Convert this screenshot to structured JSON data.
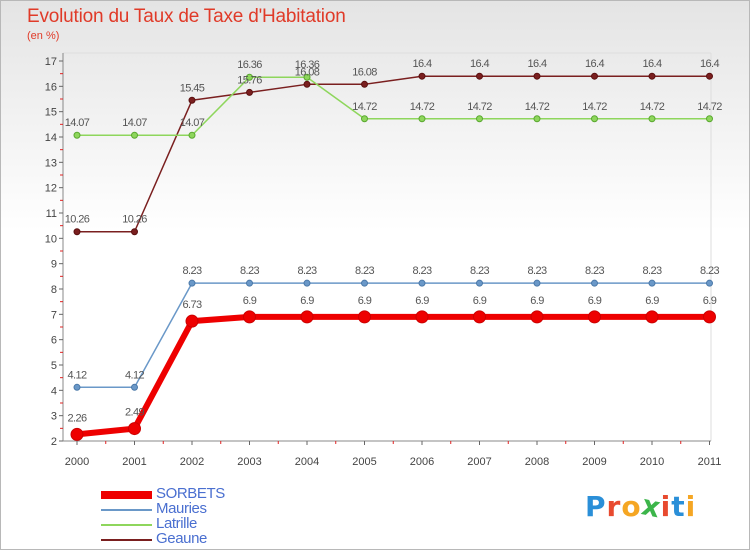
{
  "title": "Evolution du Taux de Taxe d'Habitation",
  "subtitle": "(en %)",
  "logo": {
    "letters": [
      "P",
      "r",
      "o",
      "x",
      "i",
      "t",
      "i"
    ],
    "colors": [
      "#2a8fd8",
      "#e84a2f",
      "#f5a623",
      "#3cb54a",
      "#e84a2f",
      "#2a8fd8",
      "#f5a623"
    ]
  },
  "chart_data": {
    "type": "line",
    "title": "Evolution du Taux de Taxe d'Habitation",
    "ylabel": "(en %)",
    "xlabel": "",
    "categories": [
      "2000",
      "2001",
      "2002",
      "2003",
      "2004",
      "2005",
      "2006",
      "2007",
      "2008",
      "2009",
      "2010",
      "2011"
    ],
    "ylim": [
      2,
      17
    ],
    "yticks": [
      2,
      3,
      4,
      5,
      6,
      7,
      8,
      9,
      10,
      11,
      12,
      13,
      14,
      15,
      16,
      17
    ],
    "grid": false,
    "legend": "bottom-left",
    "series": [
      {
        "name": "Geaune",
        "color": "#7a1f1f",
        "values": [
          10.26,
          10.26,
          15.45,
          15.76,
          16.08,
          16.08,
          16.4,
          16.4,
          16.4,
          16.4,
          16.4,
          16.4
        ],
        "labels": [
          "10.26",
          "10.26",
          "15.45",
          "15.76",
          "16.08",
          "16.08",
          "16.4",
          "16.4",
          "16.4",
          "16.4",
          "16.4",
          "16.4"
        ]
      },
      {
        "name": "Latrille",
        "color": "#8ed65c",
        "values": [
          14.07,
          14.07,
          14.07,
          16.36,
          16.36,
          14.72,
          14.72,
          14.72,
          14.72,
          14.72,
          14.72,
          14.72
        ],
        "labels": [
          "14.07",
          "14.07",
          "14.07",
          "16.36",
          "16.36",
          "14.72",
          "14.72",
          "14.72",
          "14.72",
          "14.72",
          "14.72",
          "14.72"
        ]
      },
      {
        "name": "Mauries",
        "color": "#6a98c8",
        "values": [
          4.12,
          4.12,
          8.23,
          8.23,
          8.23,
          8.23,
          8.23,
          8.23,
          8.23,
          8.23,
          8.23,
          8.23
        ],
        "labels": [
          "4.12",
          "4.12",
          "8.23",
          "8.23",
          "8.23",
          "8.23",
          "8.23",
          "8.23",
          "8.23",
          "8.23",
          "8.23",
          "8.23"
        ]
      },
      {
        "name": "SORBETS",
        "color": "#ee0000",
        "values": [
          2.26,
          2.49,
          6.73,
          6.9,
          6.9,
          6.9,
          6.9,
          6.9,
          6.9,
          6.9,
          6.9,
          6.9
        ],
        "labels": [
          "2.26",
          "2.49",
          "6.73",
          "6.9",
          "6.9",
          "6.9",
          "6.9",
          "6.9",
          "6.9",
          "6.9",
          "6.9",
          "6.9"
        ]
      }
    ],
    "legend_order": [
      "SORBETS",
      "Mauries",
      "Latrille",
      "Geaune"
    ]
  }
}
